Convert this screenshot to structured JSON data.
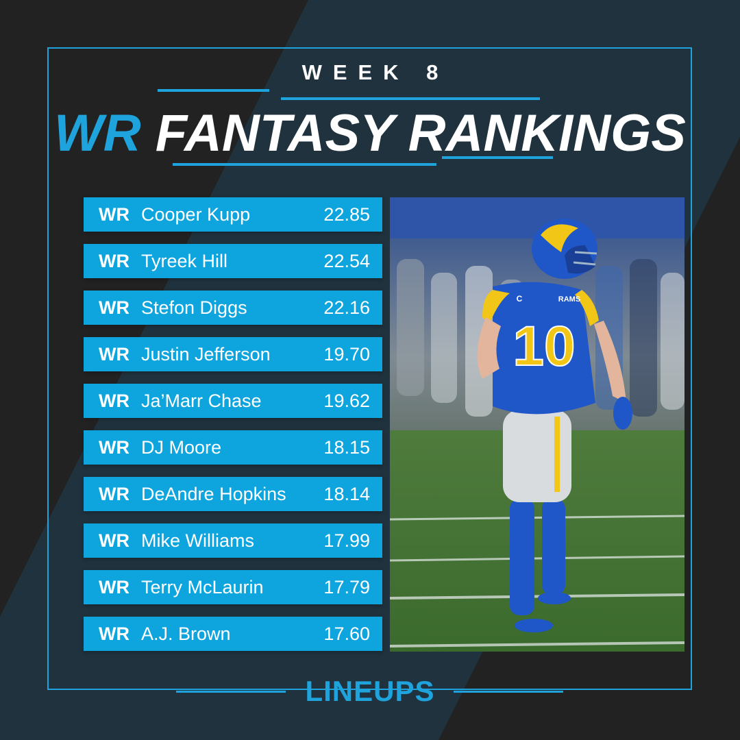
{
  "header": {
    "week": "WEEK 8",
    "title_position": "WR",
    "title_rest": "FANTASY RANKINGS"
  },
  "rankings": [
    {
      "pos": "WR",
      "name": "Cooper Kupp",
      "score": "22.85"
    },
    {
      "pos": "WR",
      "name": "Tyreek Hill",
      "score": "22.54"
    },
    {
      "pos": "WR",
      "name": "Stefon Diggs",
      "score": "22.16"
    },
    {
      "pos": "WR",
      "name": "Justin Jefferson",
      "score": "19.70"
    },
    {
      "pos": "WR",
      "name": "Ja’Marr Chase",
      "score": "19.62"
    },
    {
      "pos": "WR",
      "name": "DJ Moore",
      "score": "18.15"
    },
    {
      "pos": "WR",
      "name": "DeAndre Hopkins",
      "score": "18.14"
    },
    {
      "pos": "WR",
      "name": "Mike Williams",
      "score": "17.99"
    },
    {
      "pos": "WR",
      "name": "Terry McLaurin",
      "score": "17.79"
    },
    {
      "pos": "WR",
      "name": "A.J. Brown",
      "score": "17.60"
    }
  ],
  "photo": {
    "jersey_number": "10",
    "team_wordmark": "RAMS",
    "captain_patch": "C"
  },
  "footer": {
    "brand": "LINEUPS"
  },
  "colors": {
    "accent": "#1fa3dc",
    "row_bg": "#0ea5de",
    "background_dark": "#222222",
    "background_stripe": "#1f323d",
    "text": "#ffffff"
  }
}
